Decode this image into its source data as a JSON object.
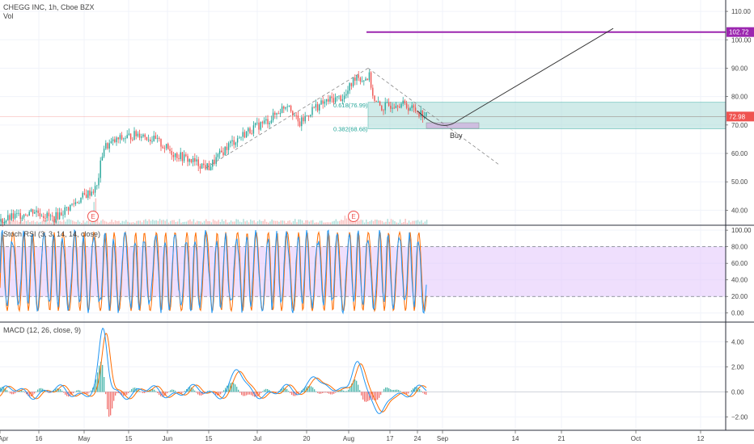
{
  "header": {
    "symbol_line": "CHEGG INC, 1h, Cboe BZX",
    "volume_label": "Vol"
  },
  "colors": {
    "up": "#26a69a",
    "down": "#ef5350",
    "target_line": "#9c27b0",
    "zone_fill": "#b2dfdb",
    "zone_border": "#26a69a",
    "rsi_band": "#e1c4fb",
    "k_line": "#2196f3",
    "d_line": "#ff6d00",
    "price_tag": "#ef5350",
    "target_tag": "#9c27b0"
  },
  "x_axis": {
    "labels": [
      "Apr",
      "16",
      "May",
      "15",
      "Jun",
      "15",
      "Jul",
      "20",
      "Aug",
      "17",
      "24",
      "Sep",
      "14",
      "21",
      "Oct",
      "12"
    ]
  },
  "chart_data": [
    {
      "type": "candlestick",
      "title": "CHEGG INC, 1h, Cboe BZX",
      "y_axis": {
        "ticks": [
          40,
          50,
          60,
          70,
          80,
          90,
          100,
          110
        ],
        "tick_labels": [
          "40.00",
          "50.00",
          "60.00",
          "70.00",
          "80.00",
          "90.00",
          "100.00",
          "110.00"
        ],
        "ylim": [
          35,
          114
        ]
      },
      "last_price": 72.98,
      "last_price_label": "72.98",
      "target": 102.72,
      "target_label": "102.72",
      "fib_labels": [
        "0.618(76.99)",
        "0.382(68.68)"
      ],
      "annotations": [
        "Buy",
        "E",
        "E"
      ],
      "price_path": [
        {
          "d": "Apr 1",
          "p": 36
        },
        {
          "d": "Apr 14",
          "p": 40
        },
        {
          "d": "Apr 21",
          "p": 37
        },
        {
          "d": "May 1",
          "p": 45
        },
        {
          "d": "May 5",
          "p": 48
        },
        {
          "d": "May 7",
          "p": 62
        },
        {
          "d": "May 12",
          "p": 65
        },
        {
          "d": "May 20",
          "p": 67
        },
        {
          "d": "May 28",
          "p": 64
        },
        {
          "d": "Jun 3",
          "p": 60
        },
        {
          "d": "Jun 10",
          "p": 57
        },
        {
          "d": "Jun 15",
          "p": 55
        },
        {
          "d": "Jun 22",
          "p": 63
        },
        {
          "d": "Jun 29",
          "p": 68
        },
        {
          "d": "Jul 6",
          "p": 72
        },
        {
          "d": "Jul 13",
          "p": 78
        },
        {
          "d": "Jul 17",
          "p": 70
        },
        {
          "d": "Jul 22",
          "p": 76
        },
        {
          "d": "Jul 27",
          "p": 79
        },
        {
          "d": "Jul 31",
          "p": 80
        },
        {
          "d": "Aug 4",
          "p": 88
        },
        {
          "d": "Aug 6",
          "p": 86
        },
        {
          "d": "Aug 9",
          "p": 87
        },
        {
          "d": "Aug 11",
          "p": 78
        },
        {
          "d": "Aug 14",
          "p": 76
        },
        {
          "d": "Aug 19",
          "p": 78
        },
        {
          "d": "Aug 24",
          "p": 75
        },
        {
          "d": "Aug 27",
          "p": 72.98
        }
      ]
    },
    {
      "type": "line",
      "title": "Stoch RSI (3, 3, 14, 14, close)",
      "y_axis": {
        "ticks": [
          0,
          20,
          40,
          60,
          80,
          100
        ],
        "tick_labels": [
          "0.00",
          "20.00",
          "40.00",
          "60.00",
          "80.00",
          "100.00"
        ],
        "ylim": [
          -10,
          105
        ]
      },
      "band": [
        20,
        80
      ],
      "series": [
        {
          "name": "K",
          "approx_oscillations": 42,
          "range": [
            0,
            100
          ]
        },
        {
          "name": "D",
          "approx_oscillations": 42,
          "range": [
            0,
            100
          ]
        }
      ]
    },
    {
      "type": "line",
      "title": "MACD (12, 26, close, 9)",
      "y_axis": {
        "ticks": [
          -2,
          0,
          2,
          4
        ],
        "tick_labels": [
          "−2.00",
          "0.00",
          "2.00",
          "4.00"
        ],
        "ylim": [
          -3,
          5.5
        ]
      },
      "peaks": [
        {
          "d": "May 7",
          "v": 4.7
        },
        {
          "d": "Jun 25",
          "v": 1.6
        },
        {
          "d": "Jul 22",
          "v": 1.7
        },
        {
          "d": "Aug 4",
          "v": 2.8
        },
        {
          "d": "Aug 13",
          "v": -2.3
        }
      ]
    }
  ]
}
